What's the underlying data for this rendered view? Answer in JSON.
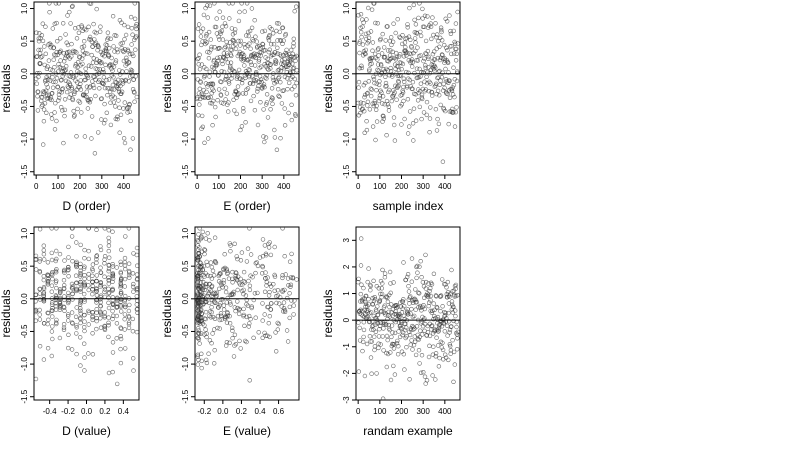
{
  "chart_data": [
    {
      "type": "scatter",
      "panel": "D (order)",
      "xlabel": "D (order)",
      "ylabel": "residuals",
      "xlim": [
        -10,
        470
      ],
      "ylim": [
        -1.55,
        1.1
      ],
      "xticks": [
        0,
        100,
        200,
        300,
        400
      ],
      "xtick_labels": [
        "0",
        "100",
        "200",
        "300",
        "400"
      ],
      "yticks": [
        -1.5,
        -1.0,
        -0.5,
        0.0,
        0.5,
        1.0
      ],
      "ytick_labels": [
        "-1.5",
        "-1.0",
        "-0.5",
        "0.0",
        "0.5",
        "1.0"
      ],
      "reference_line_y": 0,
      "marker": "open-circle",
      "x_dist": "uniform",
      "x_range": [
        0,
        460
      ],
      "y_mean": 0.05,
      "y_sd": 0.45,
      "n": 460,
      "seed": 11
    },
    {
      "type": "scatter",
      "panel": "E (order)",
      "xlabel": "E (order)",
      "ylabel": "residuals",
      "xlim": [
        -10,
        470
      ],
      "ylim": [
        -1.55,
        1.1
      ],
      "xticks": [
        0,
        100,
        200,
        300,
        400
      ],
      "xtick_labels": [
        "0",
        "100",
        "200",
        "300",
        "400"
      ],
      "yticks": [
        -1.5,
        -1.0,
        -0.5,
        0.0,
        0.5,
        1.0
      ],
      "ytick_labels": [
        "-1.5",
        "-1.0",
        "-0.5",
        "0.0",
        "0.5",
        "1.0"
      ],
      "reference_line_y": 0,
      "marker": "open-circle",
      "x_dist": "uniform",
      "x_range": [
        0,
        460
      ],
      "y_mean": 0.08,
      "y_sd": 0.42,
      "n": 460,
      "seed": 23
    },
    {
      "type": "scatter",
      "panel": "sample index",
      "xlabel": "sample index",
      "ylabel": "residuals",
      "xlim": [
        -10,
        470
      ],
      "ylim": [
        -1.55,
        1.1
      ],
      "xticks": [
        0,
        100,
        200,
        300,
        400
      ],
      "xtick_labels": [
        "0",
        "100",
        "200",
        "300",
        "400"
      ],
      "yticks": [
        -1.5,
        -1.0,
        -0.5,
        0.0,
        0.5,
        1.0
      ],
      "ytick_labels": [
        "-1.5",
        "-1.0",
        "-0.5",
        "0.0",
        "0.5",
        "1.0"
      ],
      "reference_line_y": 0,
      "marker": "open-circle",
      "x_dist": "uniform",
      "x_range": [
        0,
        460
      ],
      "y_mean": 0.05,
      "y_sd": 0.45,
      "n": 460,
      "seed": 37
    },
    {
      "type": "scatter",
      "panel": "D (value)",
      "xlabel": "D (value)",
      "ylabel": "residuals",
      "xlim": [
        -0.57,
        0.57
      ],
      "ylim": [
        -1.55,
        1.1
      ],
      "xticks": [
        -0.4,
        -0.2,
        0.0,
        0.2,
        0.4
      ],
      "xtick_labels": [
        "-0.4",
        "-0.2",
        "0.0",
        "0.2",
        "0.4"
      ],
      "yticks": [
        -1.5,
        -1.0,
        -0.5,
        0.0,
        0.5,
        1.0
      ],
      "ytick_labels": [
        "-1.5",
        "-1.0",
        "-0.5",
        "0.0",
        "0.5",
        "1.0"
      ],
      "reference_line_y": 0,
      "marker": "open-circle",
      "x_dist": "columns",
      "x_range": [
        -0.55,
        0.55
      ],
      "y_mean": 0.05,
      "y_sd": 0.45,
      "n": 460,
      "seed": 53
    },
    {
      "type": "scatter",
      "panel": "E (value)",
      "xlabel": "E (value)",
      "ylabel": "residuals",
      "xlim": [
        -0.3,
        0.82
      ],
      "ylim": [
        -1.55,
        1.1
      ],
      "xticks": [
        -0.2,
        0.0,
        0.2,
        0.4,
        0.6
      ],
      "xtick_labels": [
        "-0.2",
        "0.0",
        "0.2",
        "0.4",
        "0.6"
      ],
      "yticks": [
        -1.5,
        -1.0,
        -0.5,
        0.0,
        0.5,
        1.0
      ],
      "ytick_labels": [
        "-1.5",
        "-1.0",
        "-0.5",
        "0.0",
        "0.5",
        "1.0"
      ],
      "reference_line_y": 0,
      "marker": "open-circle",
      "x_dist": "skewed",
      "x_range": [
        -0.27,
        0.8
      ],
      "y_mean": 0.08,
      "y_sd": 0.42,
      "n": 460,
      "seed": 71
    },
    {
      "type": "scatter",
      "panel": "randam example",
      "xlabel": "randam example",
      "ylabel": "residuals",
      "xlim": [
        -10,
        470
      ],
      "ylim": [
        -3.0,
        3.5
      ],
      "xticks": [
        0,
        100,
        200,
        300,
        400
      ],
      "xtick_labels": [
        "0",
        "100",
        "200",
        "300",
        "400"
      ],
      "yticks": [
        -3,
        -2,
        -1,
        0,
        1,
        2,
        3
      ],
      "ytick_labels": [
        "-3",
        "-2",
        "-1",
        "0",
        "1",
        "2",
        "3"
      ],
      "reference_line_y": 0,
      "marker": "open-circle",
      "x_dist": "uniform",
      "x_range": [
        0,
        460
      ],
      "y_mean": 0.0,
      "y_sd": 1.0,
      "n": 460,
      "seed": 97
    }
  ]
}
